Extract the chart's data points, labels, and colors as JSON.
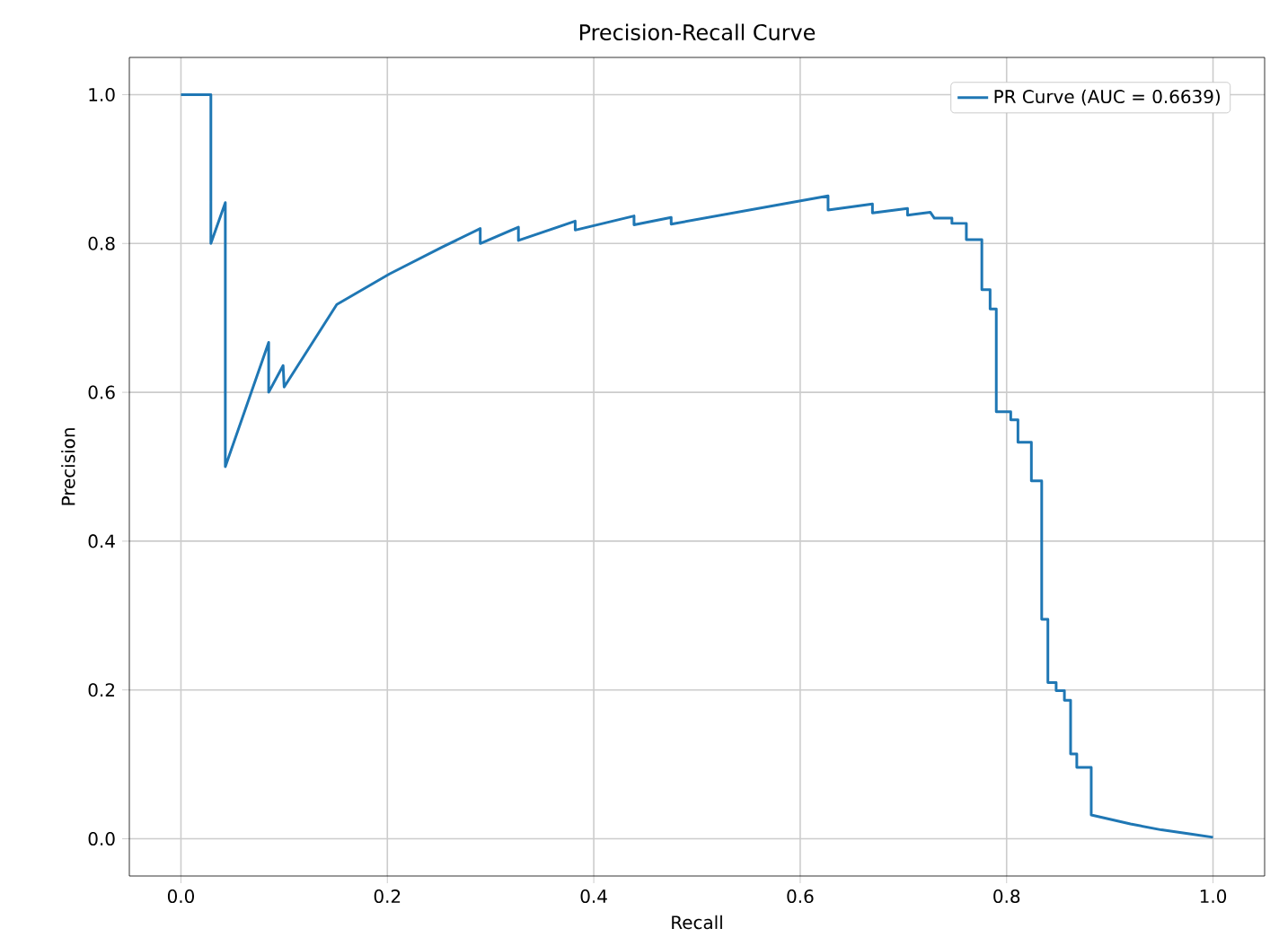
{
  "chart_data": {
    "type": "line",
    "title": "Precision-Recall Curve",
    "xlabel": "Recall",
    "ylabel": "Precision",
    "x": [
      0,
      0.029,
      0.029,
      0.043,
      0.043,
      0.085,
      0.085,
      0.099,
      0.1,
      0.151,
      0.202,
      0.253,
      0.29,
      0.29,
      0.327,
      0.327,
      0.382,
      0.382,
      0.439,
      0.439,
      0.475,
      0.475,
      0.627,
      0.627,
      0.67,
      0.67,
      0.704,
      0.704,
      0.726,
      0.73,
      0.747,
      0.747,
      0.761,
      0.761,
      0.776,
      0.776,
      0.784,
      0.784,
      0.79,
      0.79,
      0.804,
      0.804,
      0.811,
      0.811,
      0.824,
      0.824,
      0.834,
      0.834,
      0.84,
      0.84,
      0.848,
      0.848,
      0.856,
      0.856,
      0.862,
      0.862,
      0.868,
      0.868,
      0.882,
      0.882,
      0.92,
      0.95,
      0.98,
      1.0
    ],
    "series": [
      {
        "name": "PR Curve (AUC = 0.6639)",
        "color": "#1f77b4",
        "values": [
          1.0,
          1.0,
          0.8,
          0.855,
          0.5,
          0.667,
          0.6,
          0.636,
          0.607,
          0.718,
          0.759,
          0.795,
          0.82,
          0.8,
          0.822,
          0.804,
          0.83,
          0.818,
          0.837,
          0.825,
          0.835,
          0.826,
          0.864,
          0.845,
          0.853,
          0.841,
          0.847,
          0.838,
          0.842,
          0.834,
          0.834,
          0.827,
          0.827,
          0.805,
          0.805,
          0.738,
          0.738,
          0.712,
          0.712,
          0.574,
          0.574,
          0.563,
          0.563,
          0.533,
          0.533,
          0.481,
          0.481,
          0.295,
          0.295,
          0.21,
          0.21,
          0.199,
          0.199,
          0.186,
          0.186,
          0.114,
          0.114,
          0.096,
          0.096,
          0.032,
          0.02,
          0.012,
          0.006,
          0.002
        ]
      }
    ],
    "xlim": [
      -0.05,
      1.05
    ],
    "ylim": [
      -0.05,
      1.05
    ],
    "xticks": [
      {
        "value": 0,
        "label": "0.0"
      },
      {
        "value": 0.2,
        "label": "0.2"
      },
      {
        "value": 0.4,
        "label": "0.4"
      },
      {
        "value": 0.6,
        "label": "0.6"
      },
      {
        "value": 0.8,
        "label": "0.8"
      },
      {
        "value": 1,
        "label": "1.0"
      }
    ],
    "yticks": [
      {
        "value": 0,
        "label": "0.0"
      },
      {
        "value": 0.2,
        "label": "0.2"
      },
      {
        "value": 0.4,
        "label": "0.4"
      },
      {
        "value": 0.6,
        "label": "0.6"
      },
      {
        "value": 0.8,
        "label": "0.8"
      },
      {
        "value": 1,
        "label": "1.0"
      }
    ],
    "grid": true,
    "legend": "top right",
    "marker": "none",
    "line_style": "solid"
  }
}
